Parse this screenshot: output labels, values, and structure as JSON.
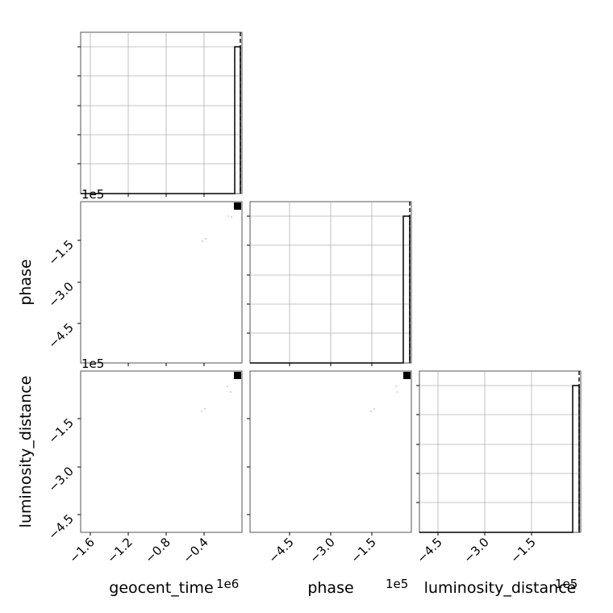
{
  "chart_data": {
    "type": "corner",
    "parameters": [
      "geocent_time",
      "phase",
      "luminosity_distance"
    ],
    "axis_labels": {
      "x": [
        "geocent_time",
        "phase",
        "luminosity_distance"
      ],
      "y": [
        "",
        "phase",
        "luminosity_distance"
      ]
    },
    "offset_labels": {
      "geocent_time": "1e6",
      "phase": "1e5",
      "luminosity_distance": "1e5"
    },
    "ticks": {
      "geocent_time": [
        "−1.6",
        "−1.2",
        "−0.8",
        "−0.4"
      ],
      "phase": [
        "−4.5",
        "−3.0",
        "−1.5"
      ],
      "luminosity_distance": [
        "−4.5",
        "−3.0",
        "−1.5"
      ]
    },
    "ranges": {
      "geocent_time": [
        -1.7,
        -0.04
      ],
      "phase": [
        -5.9,
        -0.05
      ],
      "luminosity_distance": [
        -5.9,
        -0.05
      ]
    },
    "diagonal_truth_dashed": true,
    "grid": true,
    "histogram_peak_fraction": 0.9
  }
}
